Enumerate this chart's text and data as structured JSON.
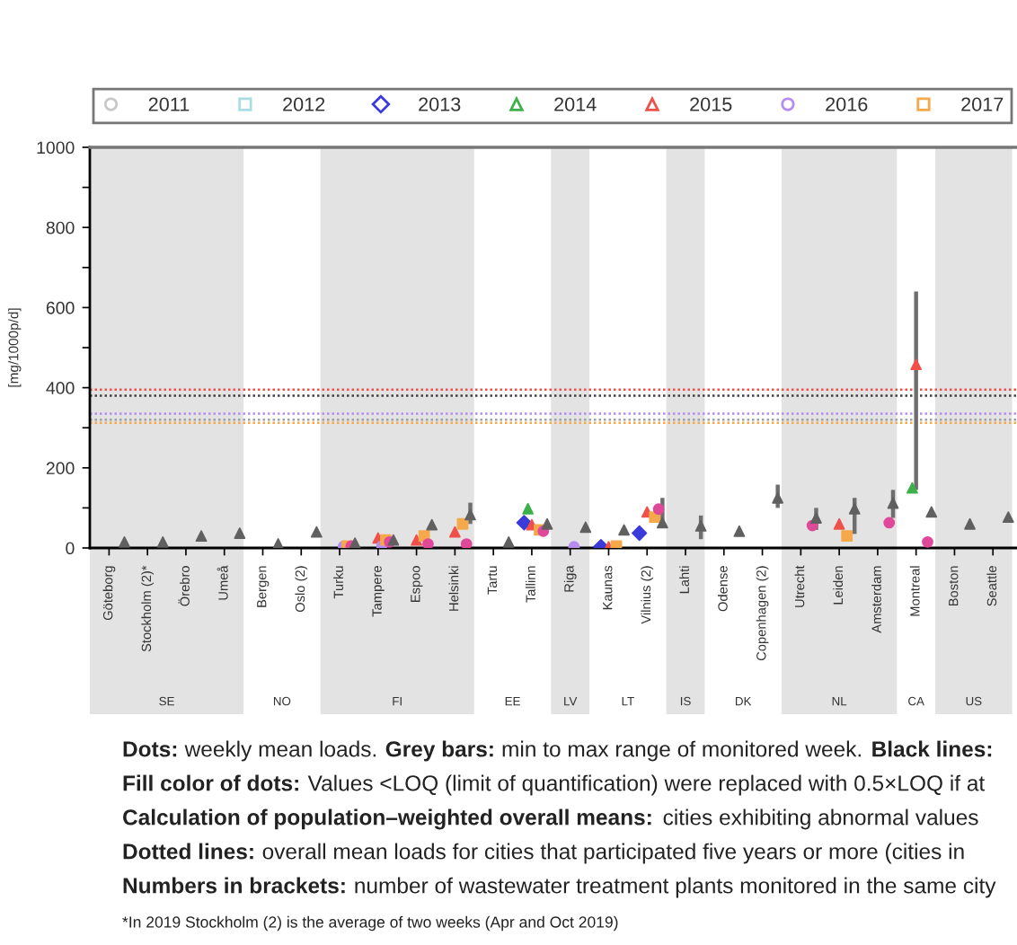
{
  "chart_data": {
    "type": "scatter",
    "ylabel": "[mg/1000p/d]",
    "categories": [
      "Göteborg",
      "Stockholm (2)*",
      "Örebro",
      "Umeå",
      "Bergen",
      "Oslo (2)",
      "Turku",
      "Tampere",
      "Espoo",
      "Helsinki",
      "Tartu",
      "Tallinn",
      "Riga",
      "Kaunas",
      "Vilnius (2)",
      "Lahti",
      "Odense",
      "Copenhagen (2)",
      "Utrecht",
      "Leiden",
      "Amsterdam",
      "Montreal",
      "Boston",
      "Seattle"
    ],
    "series": [
      {
        "name": "2011",
        "color": "#c8c8c8",
        "marker": "circle",
        "values": [
          null,
          null,
          null,
          null,
          null,
          null,
          null,
          null,
          null,
          null,
          null,
          null,
          null,
          null,
          null,
          null,
          null,
          null,
          null,
          null,
          null,
          null,
          null,
          null
        ]
      },
      {
        "name": "2012",
        "color": "#a8dde6",
        "marker": "square",
        "values": [
          null,
          null,
          null,
          null,
          null,
          null,
          null,
          null,
          null,
          null,
          null,
          null,
          null,
          null,
          null,
          null,
          null,
          null,
          null,
          null,
          null,
          null,
          null,
          null
        ]
      },
      {
        "name": "2013",
        "color": "#3b3bdc",
        "marker": "diamond",
        "values": [
          null,
          null,
          null,
          null,
          null,
          null,
          null,
          null,
          null,
          null,
          null,
          63,
          null,
          3,
          37,
          null,
          null,
          null,
          null,
          null,
          null,
          null,
          null,
          null
        ]
      },
      {
        "name": "2014",
        "color": "#3cb04a",
        "marker": "triangle",
        "values": [
          null,
          null,
          null,
          null,
          null,
          null,
          null,
          null,
          null,
          null,
          null,
          98,
          null,
          null,
          null,
          null,
          null,
          null,
          null,
          null,
          null,
          150,
          null,
          null
        ]
      },
      {
        "name": "2015",
        "color": "#f0504a",
        "marker": "triangle",
        "values": [
          null,
          null,
          null,
          null,
          null,
          null,
          null,
          25,
          20,
          40,
          null,
          58,
          null,
          3,
          90,
          null,
          null,
          null,
          null,
          60,
          null,
          458,
          null,
          null
        ],
        "errors": [
          null,
          null,
          null,
          null,
          null,
          null,
          null,
          null,
          null,
          null,
          null,
          null,
          null,
          null,
          null,
          null,
          null,
          null,
          null,
          null,
          null,
          [
            145,
            640
          ],
          null,
          null
        ]
      },
      {
        "name": "2016",
        "color": "#b58cf0",
        "marker": "circle",
        "values": [
          null,
          null,
          null,
          null,
          null,
          null,
          4,
          5,
          null,
          null,
          null,
          null,
          3,
          null,
          null,
          null,
          null,
          null,
          null,
          null,
          null,
          null,
          null,
          null
        ]
      },
      {
        "name": "2017",
        "color": "#f5a94a",
        "marker": "square",
        "values": [
          null,
          null,
          null,
          null,
          null,
          null,
          5,
          20,
          30,
          60,
          null,
          45,
          null,
          5,
          77,
          null,
          null,
          null,
          null,
          30,
          null,
          null,
          null,
          null
        ]
      },
      {
        "color": "#e0489a",
        "marker": "circle",
        "values": [
          null,
          null,
          null,
          null,
          null,
          null,
          5,
          15,
          10,
          10,
          null,
          42,
          null,
          null,
          97,
          null,
          null,
          null,
          56,
          null,
          63,
          15,
          null,
          null
        ]
      },
      {
        "color": "#606060",
        "marker": "triangle",
        "values": [
          15,
          15,
          30,
          37,
          10,
          40,
          12,
          20,
          58,
          83,
          15,
          60,
          52,
          45,
          63,
          55,
          42,
          125,
          75,
          98,
          112,
          90,
          60,
          77
        ],
        "errors": [
          null,
          null,
          null,
          null,
          null,
          null,
          null,
          null,
          null,
          [
            60,
            113
          ],
          null,
          null,
          null,
          null,
          [
            58,
            125
          ],
          [
            22,
            81
          ],
          null,
          [
            100,
            158
          ],
          [
            45,
            100
          ],
          [
            35,
            125
          ],
          [
            75,
            145
          ],
          null,
          null,
          null
        ]
      }
    ],
    "ylim": [
      0,
      1000
    ],
    "yticks": [
      0,
      {
        "value": 100,
        "label": null
      },
      200,
      {
        "value": 300,
        "label": null
      },
      400,
      {
        "value": 500,
        "label": null
      },
      600,
      {
        "value": 700,
        "label": null
      },
      800,
      {
        "value": 900,
        "label": null
      },
      1000
    ],
    "ref_lines": [
      {
        "axis": "y",
        "value": 395,
        "color": "#f0504a",
        "line_style": "dotted"
      },
      {
        "axis": "y",
        "value": 380,
        "color": "#404040",
        "line_style": "dotted"
      },
      {
        "axis": "y",
        "value": 335,
        "color": "#b58cf0",
        "line_style": "dotted"
      },
      {
        "axis": "y",
        "value": 320,
        "color": "#a0a0a0",
        "line_style": "dotted"
      },
      {
        "axis": "y",
        "value": 312,
        "color": "#f5a94a",
        "line_style": "dotted"
      }
    ],
    "bands": [
      {
        "axis": "x",
        "from": "Göteborg",
        "to": "Umeå",
        "label": "SE",
        "color": "#e3e3e3"
      },
      {
        "axis": "x",
        "from": "Turku",
        "to": "Helsinki",
        "label": "FI",
        "color": "#e3e3e3"
      },
      {
        "axis": "x",
        "from": "Riga",
        "to": "Riga",
        "label": "LV",
        "color": "#e3e3e3"
      },
      {
        "axis": "x",
        "from": "Lahti",
        "to": "Lahti",
        "label": "IS",
        "color": "#e3e3e3"
      },
      {
        "axis": "x",
        "from": "Utrecht",
        "to": "Amsterdam",
        "label": "NL",
        "color": "#e3e3e3"
      },
      {
        "axis": "x",
        "from": "Boston",
        "to": "Seattle",
        "label": "US",
        "color": "#e3e3e3"
      }
    ],
    "legend": "top",
    "annotations": [
      "NO",
      "EE",
      "LT",
      "DK",
      "CA",
      "Dots: weekly mean loads. Grey bars: min to max range of monitored week. Black lines:",
      "Fill color of dots: Values <LOQ (limit of quantification) were replaced with 0.5×LOQ if at",
      "Calculation of population–weighted overall means: cities exhibiting abnormal values",
      "Dotted lines: overall mean loads for cities that participated five years or more (cities in",
      "Numbers in brackets: number of wastewater treatment plants monitored in the same city",
      "*In 2019 Stockholm (2) is the average of two weeks (Apr and Oct 2019)"
    ]
  }
}
